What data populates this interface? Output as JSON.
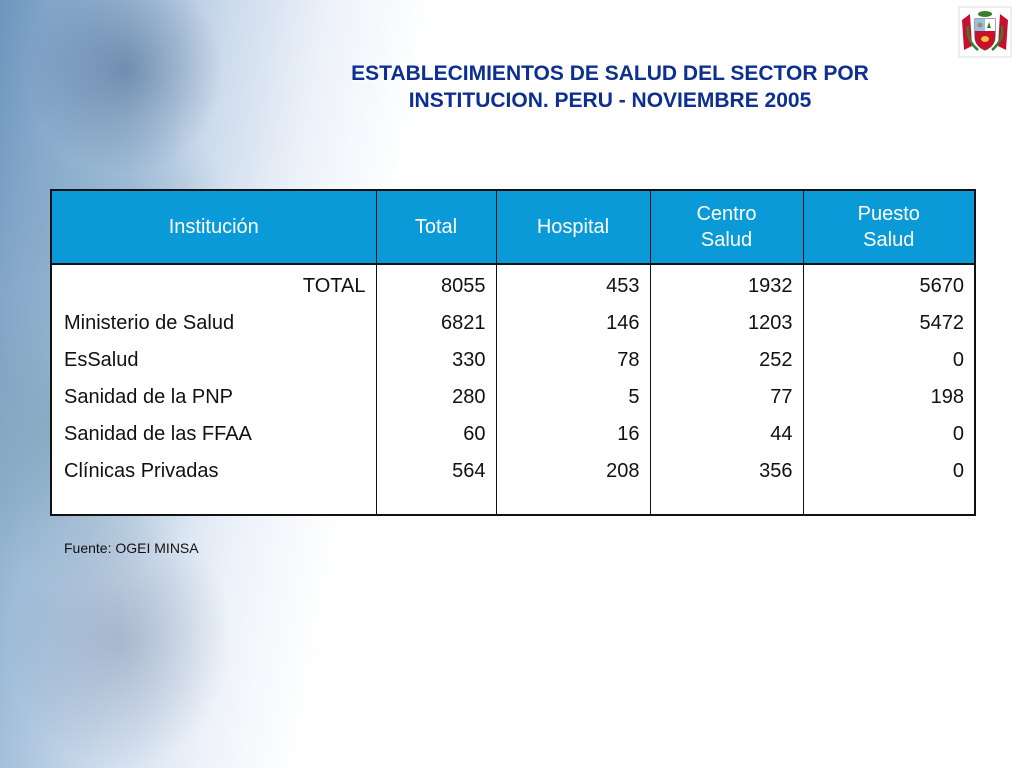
{
  "slide": {
    "title_line1": "ESTABLECIMIENTOS DE SALUD DEL SECTOR POR",
    "title_line2": "INSTITUCION. PERU - NOVIEMBRE 2005",
    "source": "Fuente: OGEI MINSA"
  },
  "table": {
    "headers": {
      "institucion": "Institución",
      "total": "Total",
      "hospital": "Hospital",
      "centro_l1": "Centro",
      "centro_l2": "Salud",
      "puesto_l1": "Puesto",
      "puesto_l2": "Salud"
    },
    "rows": [
      {
        "institucion": "TOTAL",
        "total": "8055",
        "hospital": "453",
        "centro": "1932",
        "puesto": "5670"
      },
      {
        "institucion": "Ministerio de Salud",
        "total": "6821",
        "hospital": "146",
        "centro": "1203",
        "puesto": "5472"
      },
      {
        "institucion": "EsSalud",
        "total": "330",
        "hospital": "78",
        "centro": "252",
        "puesto": "0"
      },
      {
        "institucion": "Sanidad de la PNP",
        "total": "280",
        "hospital": "5",
        "centro": "77",
        "puesto": "198"
      },
      {
        "institucion": "Sanidad de las FFAA",
        "total": "60",
        "hospital": "16",
        "centro": "44",
        "puesto": "0"
      },
      {
        "institucion": "Clínicas Privadas",
        "total": "564",
        "hospital": "208",
        "centro": "356",
        "puesto": "0"
      }
    ]
  },
  "emblem": {
    "icon": "peru-coat-of-arms-icon",
    "colors": {
      "red": "#c8102e",
      "white": "#ffffff"
    }
  },
  "theme": {
    "header_bg": "#0b9ad8",
    "title_color": "#0d2f8f"
  }
}
